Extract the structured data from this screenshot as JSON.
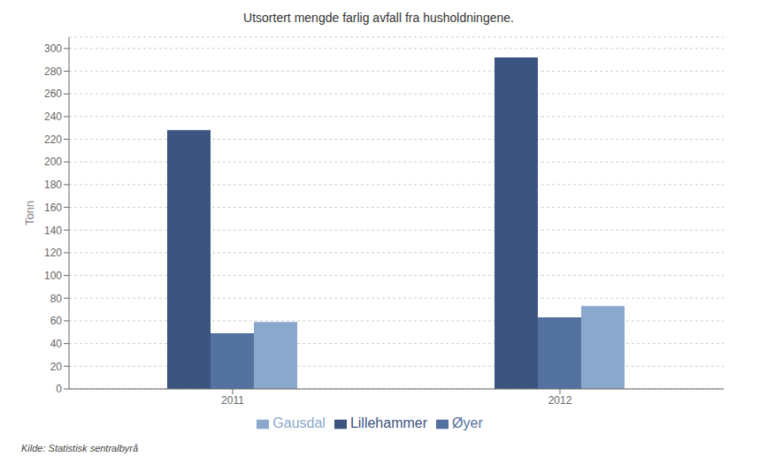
{
  "chart_data": {
    "type": "bar",
    "title": "Utsortert mengde farlig avfall fra husholdningene.",
    "y_label": "Tonn",
    "categories": [
      "2011",
      "2012"
    ],
    "series": [
      {
        "name": "Lillehammer",
        "color": "#3B5480",
        "values": [
          228,
          292
        ]
      },
      {
        "name": "Øyer",
        "color": "#5472A0",
        "values": [
          49,
          63
        ]
      },
      {
        "name": "Gausdal",
        "color": "#8AA8CC",
        "values": [
          59,
          73
        ]
      }
    ],
    "ylim": [
      0,
      310
    ],
    "yticks": [
      0,
      20,
      40,
      60,
      80,
      100,
      120,
      140,
      160,
      180,
      200,
      220,
      240,
      260,
      280,
      300
    ],
    "grid": true,
    "legend": "bottom",
    "annotations": [
      "Kilde: Statistisk sentralbyrå"
    ]
  }
}
